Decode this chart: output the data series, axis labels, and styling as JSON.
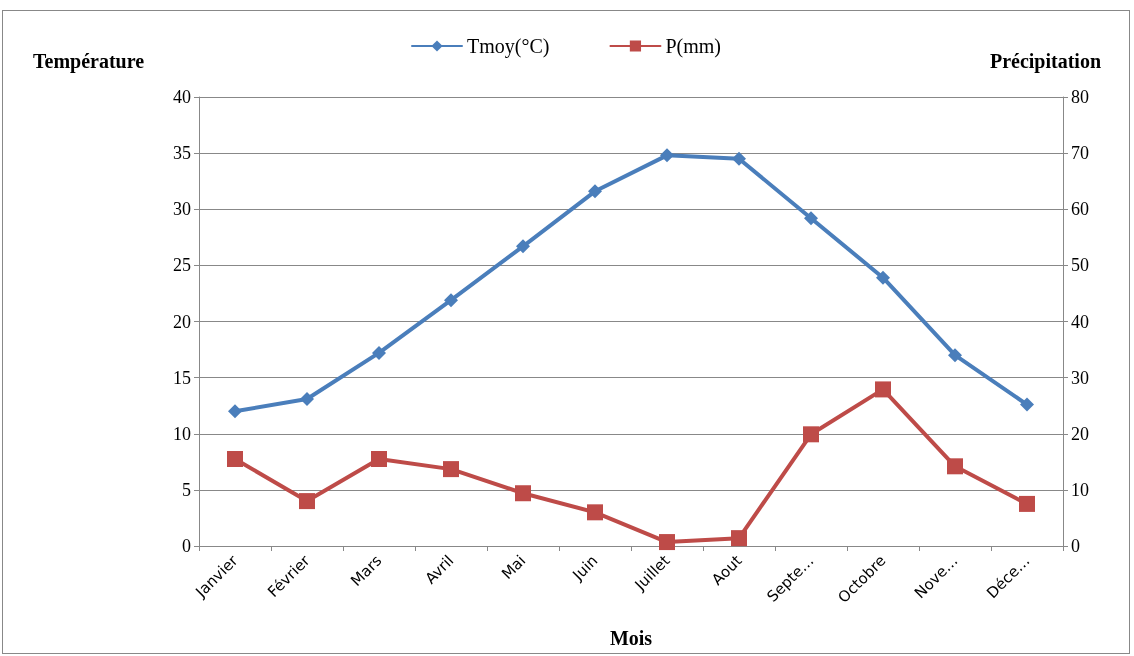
{
  "chart_data": {
    "type": "line",
    "xlabel": "Mois",
    "ylabel": "Température",
    "y2label": "Précipitation",
    "categories": [
      "Janvier",
      "Février",
      "Mars",
      "Avril",
      "Mai",
      "Juin",
      "Juillet",
      "Aout",
      "Septe…",
      "Octobre",
      "Nove…",
      "Déce…"
    ],
    "series": [
      {
        "name": "Tmoy(°C)",
        "color": "#4a7ebb",
        "marker": "diamond",
        "values": [
          12.0,
          13.1,
          17.2,
          21.9,
          26.7,
          31.6,
          34.8,
          34.5,
          29.2,
          23.9,
          17.0,
          12.6
        ]
      },
      {
        "name": "P(mm)",
        "color": "#be4b48",
        "marker": "square",
        "axis": "y2",
        "values": [
          15.5,
          8.0,
          15.5,
          13.7,
          9.4,
          6.0,
          0.7,
          1.4,
          19.9,
          27.9,
          14.2,
          7.5
        ]
      }
    ],
    "ylim": [
      0,
      40
    ],
    "yticks": [
      0,
      5,
      10,
      15,
      20,
      25,
      30,
      35,
      40
    ],
    "y2lim": [
      0,
      80
    ],
    "y2ticks": [
      0,
      10,
      20,
      30,
      40,
      50,
      60,
      70,
      80
    ],
    "grid": "y",
    "legend": "top",
    "line_style": "solid"
  }
}
